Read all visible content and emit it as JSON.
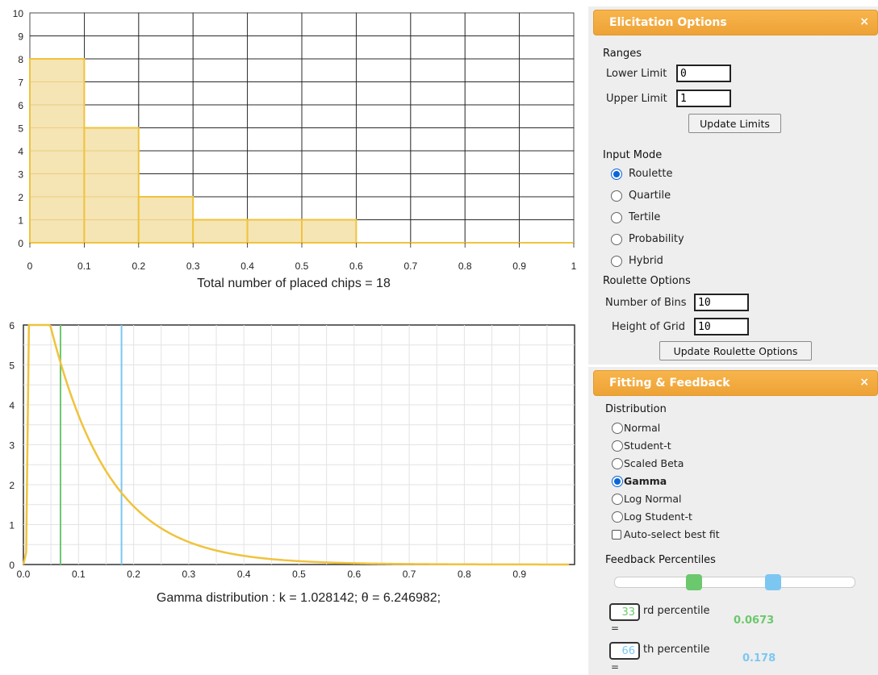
{
  "roulette_chart": {
    "chart_data": {
      "type": "bar",
      "x_ticks": [
        "0",
        "0.1",
        "0.2",
        "0.3",
        "0.4",
        "0.5",
        "0.6",
        "0.7",
        "0.8",
        "0.9",
        "1"
      ],
      "y_ticks": [
        "0",
        "1",
        "2",
        "3",
        "4",
        "5",
        "6",
        "7",
        "8",
        "9",
        "10"
      ],
      "bins": [
        [
          0,
          0.1
        ],
        [
          0.1,
          0.2
        ],
        [
          0.2,
          0.3
        ],
        [
          0.3,
          0.4
        ],
        [
          0.4,
          0.5
        ],
        [
          0.5,
          0.6
        ],
        [
          0.6,
          0.7
        ],
        [
          0.7,
          0.8
        ],
        [
          0.8,
          0.9
        ],
        [
          0.9,
          1
        ]
      ],
      "values": [
        8,
        5,
        2,
        1,
        1,
        1,
        0,
        0,
        0,
        0
      ],
      "xlim": [
        0,
        1
      ],
      "ylim": [
        0,
        10
      ],
      "grid": true,
      "color": "#f0c33c",
      "fill": "#f5e4b4"
    },
    "caption": "Total number of placed chips = 18"
  },
  "gamma_chart": {
    "chart_data": {
      "type": "line",
      "x_ticks": [
        "0.0",
        "0.1",
        "0.2",
        "0.3",
        "0.4",
        "0.5",
        "0.6",
        "0.7",
        "0.8",
        "0.9"
      ],
      "y_ticks": [
        "0",
        "1",
        "2",
        "3",
        "4",
        "5",
        "6"
      ],
      "xlim": [
        0,
        1
      ],
      "ylim": [
        0,
        6
      ],
      "distribution": "gamma",
      "k": 1.028142,
      "theta": 6.246982,
      "series_color": "#f0c33c",
      "vertical_lines": [
        {
          "x": 0.0673,
          "color": "#6cc86c"
        },
        {
          "x": 0.178,
          "color": "#7cc7f2"
        }
      ],
      "grid": true
    },
    "caption": "Gamma distribution : k = 1.028142; θ = 6.246982;"
  },
  "elicitation": {
    "title": "Elicitation Options",
    "close": "×",
    "ranges_label": "Ranges",
    "lower_label": "Lower Limit",
    "lower_value": "0",
    "upper_label": "Upper Limit",
    "upper_value": "1",
    "update_limits": "Update Limits",
    "input_mode_label": "Input Mode",
    "modes": [
      "Roulette",
      "Quartile",
      "Tertile",
      "Probability",
      "Hybrid"
    ],
    "selected_mode": "Roulette",
    "roulette_options_label": "Roulette Options",
    "bins_label": "Number of Bins",
    "bins_value": "10",
    "height_label": "Height of Grid",
    "height_value": "10",
    "update_roulette": "Update Roulette Options"
  },
  "fitting": {
    "title": "Fitting & Feedback",
    "close": "×",
    "distribution_label": "Distribution",
    "distributions": [
      "Normal",
      "Student-t",
      "Scaled Beta",
      "Gamma",
      "Log Normal",
      "Log Student-t"
    ],
    "selected": "Gamma",
    "auto_select": "Auto-select best fit",
    "feedback_label": "Feedback Percentiles",
    "slider": {
      "low": 0.33,
      "high": 0.66,
      "low_color": "#6cc86c",
      "high_color": "#7cc7f2"
    },
    "p1_value": "33",
    "p1_suffix": "rd percentile",
    "p1_result": "0.0673",
    "p2_value": "66",
    "p2_suffix": "th percentile",
    "p2_result": "0.178",
    "eq": "="
  }
}
